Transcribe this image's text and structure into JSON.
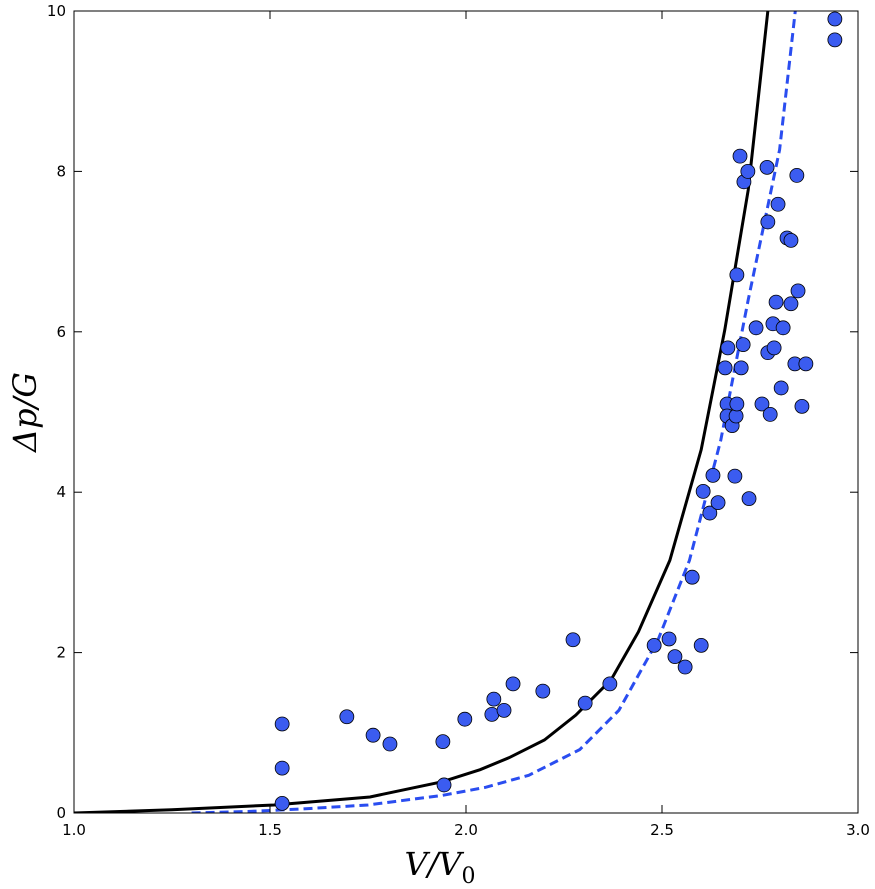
{
  "chart_data": {
    "type": "scatter",
    "title": "",
    "xlabel": "V/V",
    "xlabel_sub": "0",
    "ylabel": "Δp/G",
    "xlim": [
      1.0,
      3.0
    ],
    "ylim": [
      0,
      10
    ],
    "xticks": [
      "1.0",
      "1.5",
      "2.0",
      "2.5",
      "3.0"
    ],
    "yticks": [
      "0",
      "2",
      "4",
      "6",
      "8",
      "10"
    ],
    "grid": false,
    "colors": {
      "points": "#3b5cf0",
      "solid_line": "#000000",
      "dashed_line": "#2a4df0"
    },
    "points": [
      [
        1.531,
        1.11
      ],
      [
        1.531,
        0.56
      ],
      [
        1.531,
        0.12
      ],
      [
        1.696,
        1.2
      ],
      [
        1.763,
        0.97
      ],
      [
        1.806,
        0.86
      ],
      [
        1.941,
        0.89
      ],
      [
        1.944,
        0.35
      ],
      [
        1.997,
        1.17
      ],
      [
        2.066,
        1.23
      ],
      [
        2.071,
        1.42
      ],
      [
        2.097,
        1.28
      ],
      [
        2.12,
        1.61
      ],
      [
        2.196,
        1.52
      ],
      [
        2.273,
        2.16
      ],
      [
        2.304,
        1.37
      ],
      [
        2.367,
        1.61
      ],
      [
        2.48,
        2.09
      ],
      [
        2.518,
        2.17
      ],
      [
        2.533,
        1.95
      ],
      [
        2.559,
        1.82
      ],
      [
        2.577,
        2.94
      ],
      [
        2.6,
        2.09
      ],
      [
        2.605,
        4.01
      ],
      [
        2.622,
        3.74
      ],
      [
        2.63,
        4.21
      ],
      [
        2.643,
        3.87
      ],
      [
        2.661,
        5.55
      ],
      [
        2.666,
        5.1
      ],
      [
        2.666,
        4.95
      ],
      [
        2.668,
        5.8
      ],
      [
        2.679,
        4.83
      ],
      [
        2.686,
        4.2
      ],
      [
        2.689,
        4.95
      ],
      [
        2.691,
        5.1
      ],
      [
        2.691,
        6.71
      ],
      [
        2.699,
        8.19
      ],
      [
        2.702,
        5.55
      ],
      [
        2.707,
        5.84
      ],
      [
        2.709,
        7.87
      ],
      [
        2.719,
        8.0
      ],
      [
        2.722,
        3.92
      ],
      [
        2.74,
        6.05
      ],
      [
        2.755,
        5.1
      ],
      [
        2.768,
        8.05
      ],
      [
        2.77,
        5.74
      ],
      [
        2.77,
        7.37
      ],
      [
        2.776,
        4.97
      ],
      [
        2.783,
        6.1
      ],
      [
        2.786,
        5.8
      ],
      [
        2.791,
        6.37
      ],
      [
        2.796,
        7.59
      ],
      [
        2.804,
        5.3
      ],
      [
        2.809,
        6.05
      ],
      [
        2.819,
        7.17
      ],
      [
        2.829,
        7.14
      ],
      [
        2.829,
        6.35
      ],
      [
        2.839,
        5.6
      ],
      [
        2.844,
        7.95
      ],
      [
        2.847,
        6.51
      ],
      [
        2.857,
        5.07
      ],
      [
        2.867,
        5.6
      ],
      [
        2.941,
        9.9
      ],
      [
        2.941,
        9.64
      ]
    ],
    "solid_curve": [
      [
        1.0,
        0
      ],
      [
        1.25,
        0.04
      ],
      [
        1.51,
        0.1
      ],
      [
        1.755,
        0.2
      ],
      [
        1.94,
        0.39
      ],
      [
        2.036,
        0.54
      ],
      [
        2.11,
        0.69
      ],
      [
        2.2,
        0.91
      ],
      [
        2.28,
        1.22
      ],
      [
        2.37,
        1.66
      ],
      [
        2.44,
        2.26
      ],
      [
        2.52,
        3.15
      ],
      [
        2.6,
        4.53
      ],
      [
        2.66,
        6.02
      ],
      [
        2.72,
        7.77
      ],
      [
        2.77,
        10
      ]
    ],
    "dashed_curve": [
      [
        1.3,
        0.0
      ],
      [
        1.45,
        0.02
      ],
      [
        1.58,
        0.05
      ],
      [
        1.75,
        0.1
      ],
      [
        1.94,
        0.22
      ],
      [
        2.05,
        0.32
      ],
      [
        2.16,
        0.47
      ],
      [
        2.29,
        0.79
      ],
      [
        2.39,
        1.28
      ],
      [
        2.49,
        2.16
      ],
      [
        2.57,
        3.15
      ],
      [
        2.65,
        4.65
      ],
      [
        2.72,
        6.4
      ],
      [
        2.8,
        8.27
      ],
      [
        2.84,
        10
      ]
    ]
  }
}
